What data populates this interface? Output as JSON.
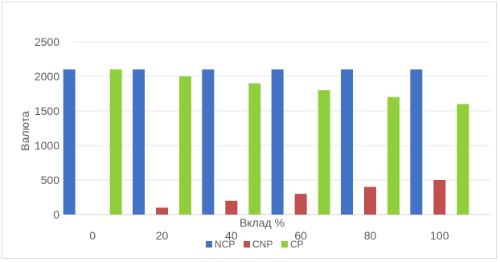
{
  "chart_data": {
    "type": "bar",
    "categories": [
      "0",
      "20",
      "40",
      "60",
      "80",
      "100"
    ],
    "series": [
      {
        "name": "NCP",
        "values": [
          2100,
          2100,
          2100,
          2100,
          2100,
          2100
        ],
        "color": "#4472c4"
      },
      {
        "name": "CNP",
        "values": [
          0,
          100,
          200,
          300,
          400,
          500
        ],
        "color": "#c0504d"
      },
      {
        "name": "CP",
        "values": [
          2100,
          2000,
          1900,
          1800,
          1700,
          1600
        ],
        "color": "#8fcf3c"
      }
    ],
    "title": "",
    "xlabel": "Вклад %",
    "ylabel": "Валюта",
    "ylim": [
      0,
      2500
    ],
    "yticks": [
      "0",
      "500",
      "1000",
      "1500",
      "2000",
      "2500"
    ],
    "grid": true,
    "legend_position": "bottom"
  }
}
